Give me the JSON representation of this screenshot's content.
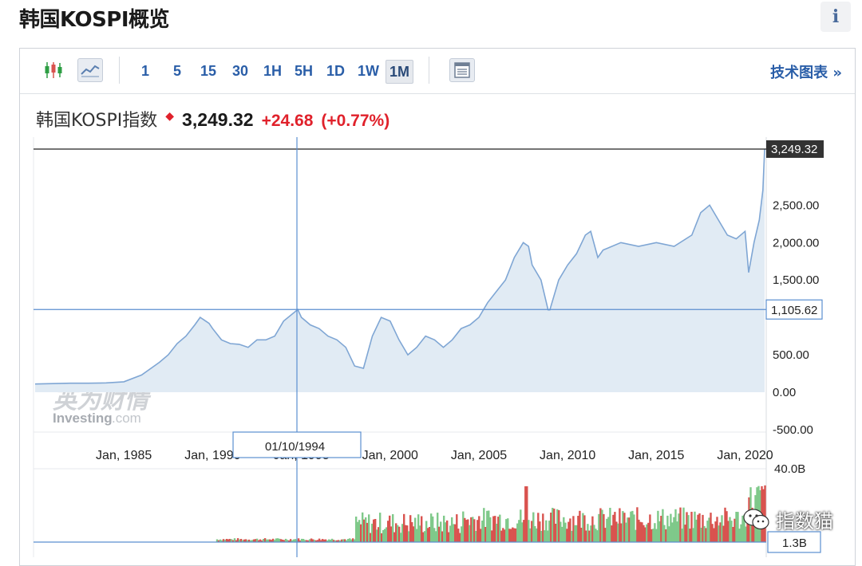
{
  "page": {
    "title": "韩国KOSPI概览",
    "info_label": "i"
  },
  "toolbar": {
    "timeframes": [
      "1",
      "5",
      "15",
      "30",
      "1H",
      "5H",
      "1D",
      "1W",
      "1M"
    ],
    "active_timeframe": "1M",
    "tech_chart_link": "技术图表 »"
  },
  "quote": {
    "name": "韩国KOSPI指数",
    "price": "3,249.32",
    "change": "+24.68",
    "change_pct": "(+0.77%)",
    "up_color": "#e0212b"
  },
  "watermark": {
    "cn": "英为财情",
    "en": "Investing",
    "en_suffix": ".com"
  },
  "crosshair": {
    "date_label": "01/10/1994",
    "value_label": "1,105.62",
    "value": 1105.62,
    "x_year": 1994.75
  },
  "last_price_label": "3,249.32",
  "wechat_label": "指数猫",
  "colors": {
    "line": "#7fa6d4",
    "area": "#e1ebf4",
    "volume_up": "#7fc98a",
    "volume_down": "#d9534f",
    "crosshair": "#5b8fd0"
  },
  "chart_data": {
    "type": "area",
    "x_label_years": [
      1985,
      1990,
      1995,
      2000,
      2005,
      2010,
      2015,
      2020
    ],
    "x_ticks": [
      "Jan, 1985",
      "Jan, 1990",
      "Jan, 1995",
      "Jan, 2000",
      "Jan, 2005",
      "Jan, 2010",
      "Jan, 2015",
      "Jan, 2020"
    ],
    "y_ticks": [
      {
        "value": 2500,
        "label": "2,500.00"
      },
      {
        "value": 2000,
        "label": "2,000.00"
      },
      {
        "value": 1500,
        "label": "1,500.00"
      },
      {
        "value": 500,
        "label": "500.00"
      },
      {
        "value": 0,
        "label": "0.00"
      },
      {
        "value": -500,
        "label": "-500.00"
      }
    ],
    "ylim": [
      -500,
      3249.32
    ],
    "xlim": [
      1980,
      2021.1
    ],
    "series": [
      {
        "x": [
          1980,
          1981,
          1982,
          1983,
          1984,
          1985,
          1986,
          1987,
          1987.5,
          1988,
          1988.5,
          1989,
          1989.3,
          1989.8,
          1990,
          1990.5,
          1991,
          1991.5,
          1992,
          1992.5,
          1993,
          1993.5,
          1994,
          1994.8,
          1995,
          1995.5,
          1996,
          1996.5,
          1997,
          1997.5,
          1998,
          1998.5,
          1999,
          1999.5,
          2000,
          2000.5,
          2001,
          2001.5,
          2002,
          2002.5,
          2003,
          2003.5,
          2004,
          2004.5,
          2005,
          2005.5,
          2006,
          2006.5,
          2007,
          2007.5,
          2007.8,
          2008,
          2008.5,
          2008.9,
          2009,
          2009.5,
          2010,
          2010.5,
          2011,
          2011.3,
          2011.7,
          2012,
          2013,
          2014,
          2015,
          2016,
          2017,
          2017.5,
          2018,
          2018.5,
          2019,
          2019.5,
          2020,
          2020.2,
          2020.5,
          2020.8,
          2021.0,
          2021.1
        ],
        "y": [
          110,
          115,
          120,
          120,
          125,
          140,
          230,
          400,
          500,
          650,
          750,
          900,
          1000,
          920,
          850,
          700,
          650,
          640,
          600,
          700,
          700,
          750,
          950,
          1105,
          1000,
          900,
          850,
          750,
          700,
          600,
          350,
          320,
          750,
          1000,
          950,
          700,
          500,
          600,
          750,
          700,
          600,
          700,
          850,
          900,
          1000,
          1200,
          1350,
          1500,
          1800,
          2000,
          1950,
          1700,
          1500,
          1100,
          1100,
          1500,
          1700,
          1850,
          2100,
          2150,
          1800,
          1900,
          2000,
          1950,
          2000,
          1950,
          2100,
          2400,
          2500,
          2300,
          2100,
          2050,
          2150,
          1600,
          2000,
          2300,
          2700,
          3249.32
        ]
      }
    ],
    "volume_axis_labels": [
      "40.0B",
      "1.3B"
    ]
  }
}
